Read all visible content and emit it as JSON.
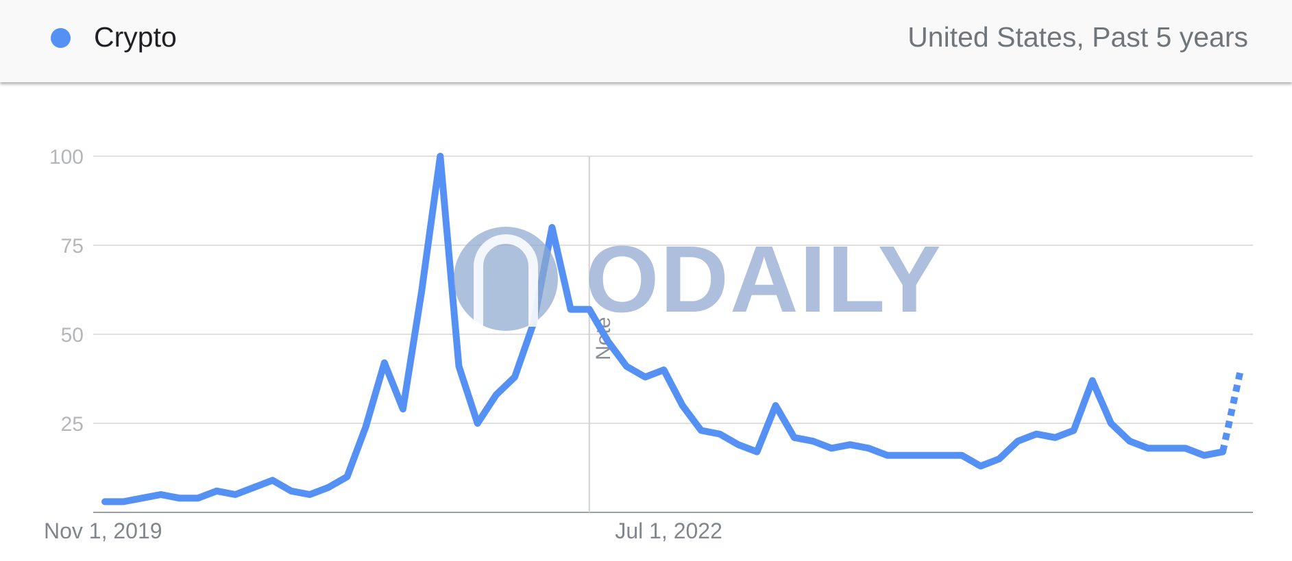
{
  "header": {
    "term_label": "Crypto",
    "region_period": "United States, Past 5 years"
  },
  "colors": {
    "series": "#5591f5",
    "grid": "#e0e0e0",
    "axis": "#9aa0a6"
  },
  "note_label": "Note",
  "watermark_text": "ODAILY",
  "chart_data": {
    "type": "line",
    "title": "",
    "xlabel": "",
    "ylabel": "",
    "ylim": [
      0,
      100
    ],
    "y_ticks": [
      100,
      75,
      50,
      25
    ],
    "x_tick_labels": [
      {
        "label": "Nov 1, 2019",
        "index": 0
      },
      {
        "label": "Jul 1, 2022",
        "index": 29
      }
    ],
    "note_marker_index": 26,
    "grid": true,
    "legend": "top-left",
    "series": [
      {
        "name": "Crypto",
        "values": [
          3,
          3,
          4,
          5,
          4,
          4,
          6,
          5,
          7,
          9,
          6,
          5,
          7,
          10,
          24,
          42,
          29,
          62,
          100,
          41,
          25,
          33,
          38,
          53,
          80,
          57,
          57,
          48,
          41,
          38,
          40,
          30,
          23,
          22,
          19,
          17,
          30,
          21,
          20,
          18,
          19,
          18,
          16,
          16,
          16,
          16,
          16,
          13,
          15,
          20,
          22,
          21,
          23,
          37,
          25,
          20,
          18,
          18,
          18,
          16,
          17
        ],
        "partial_values": [
          17,
          40
        ]
      }
    ]
  }
}
